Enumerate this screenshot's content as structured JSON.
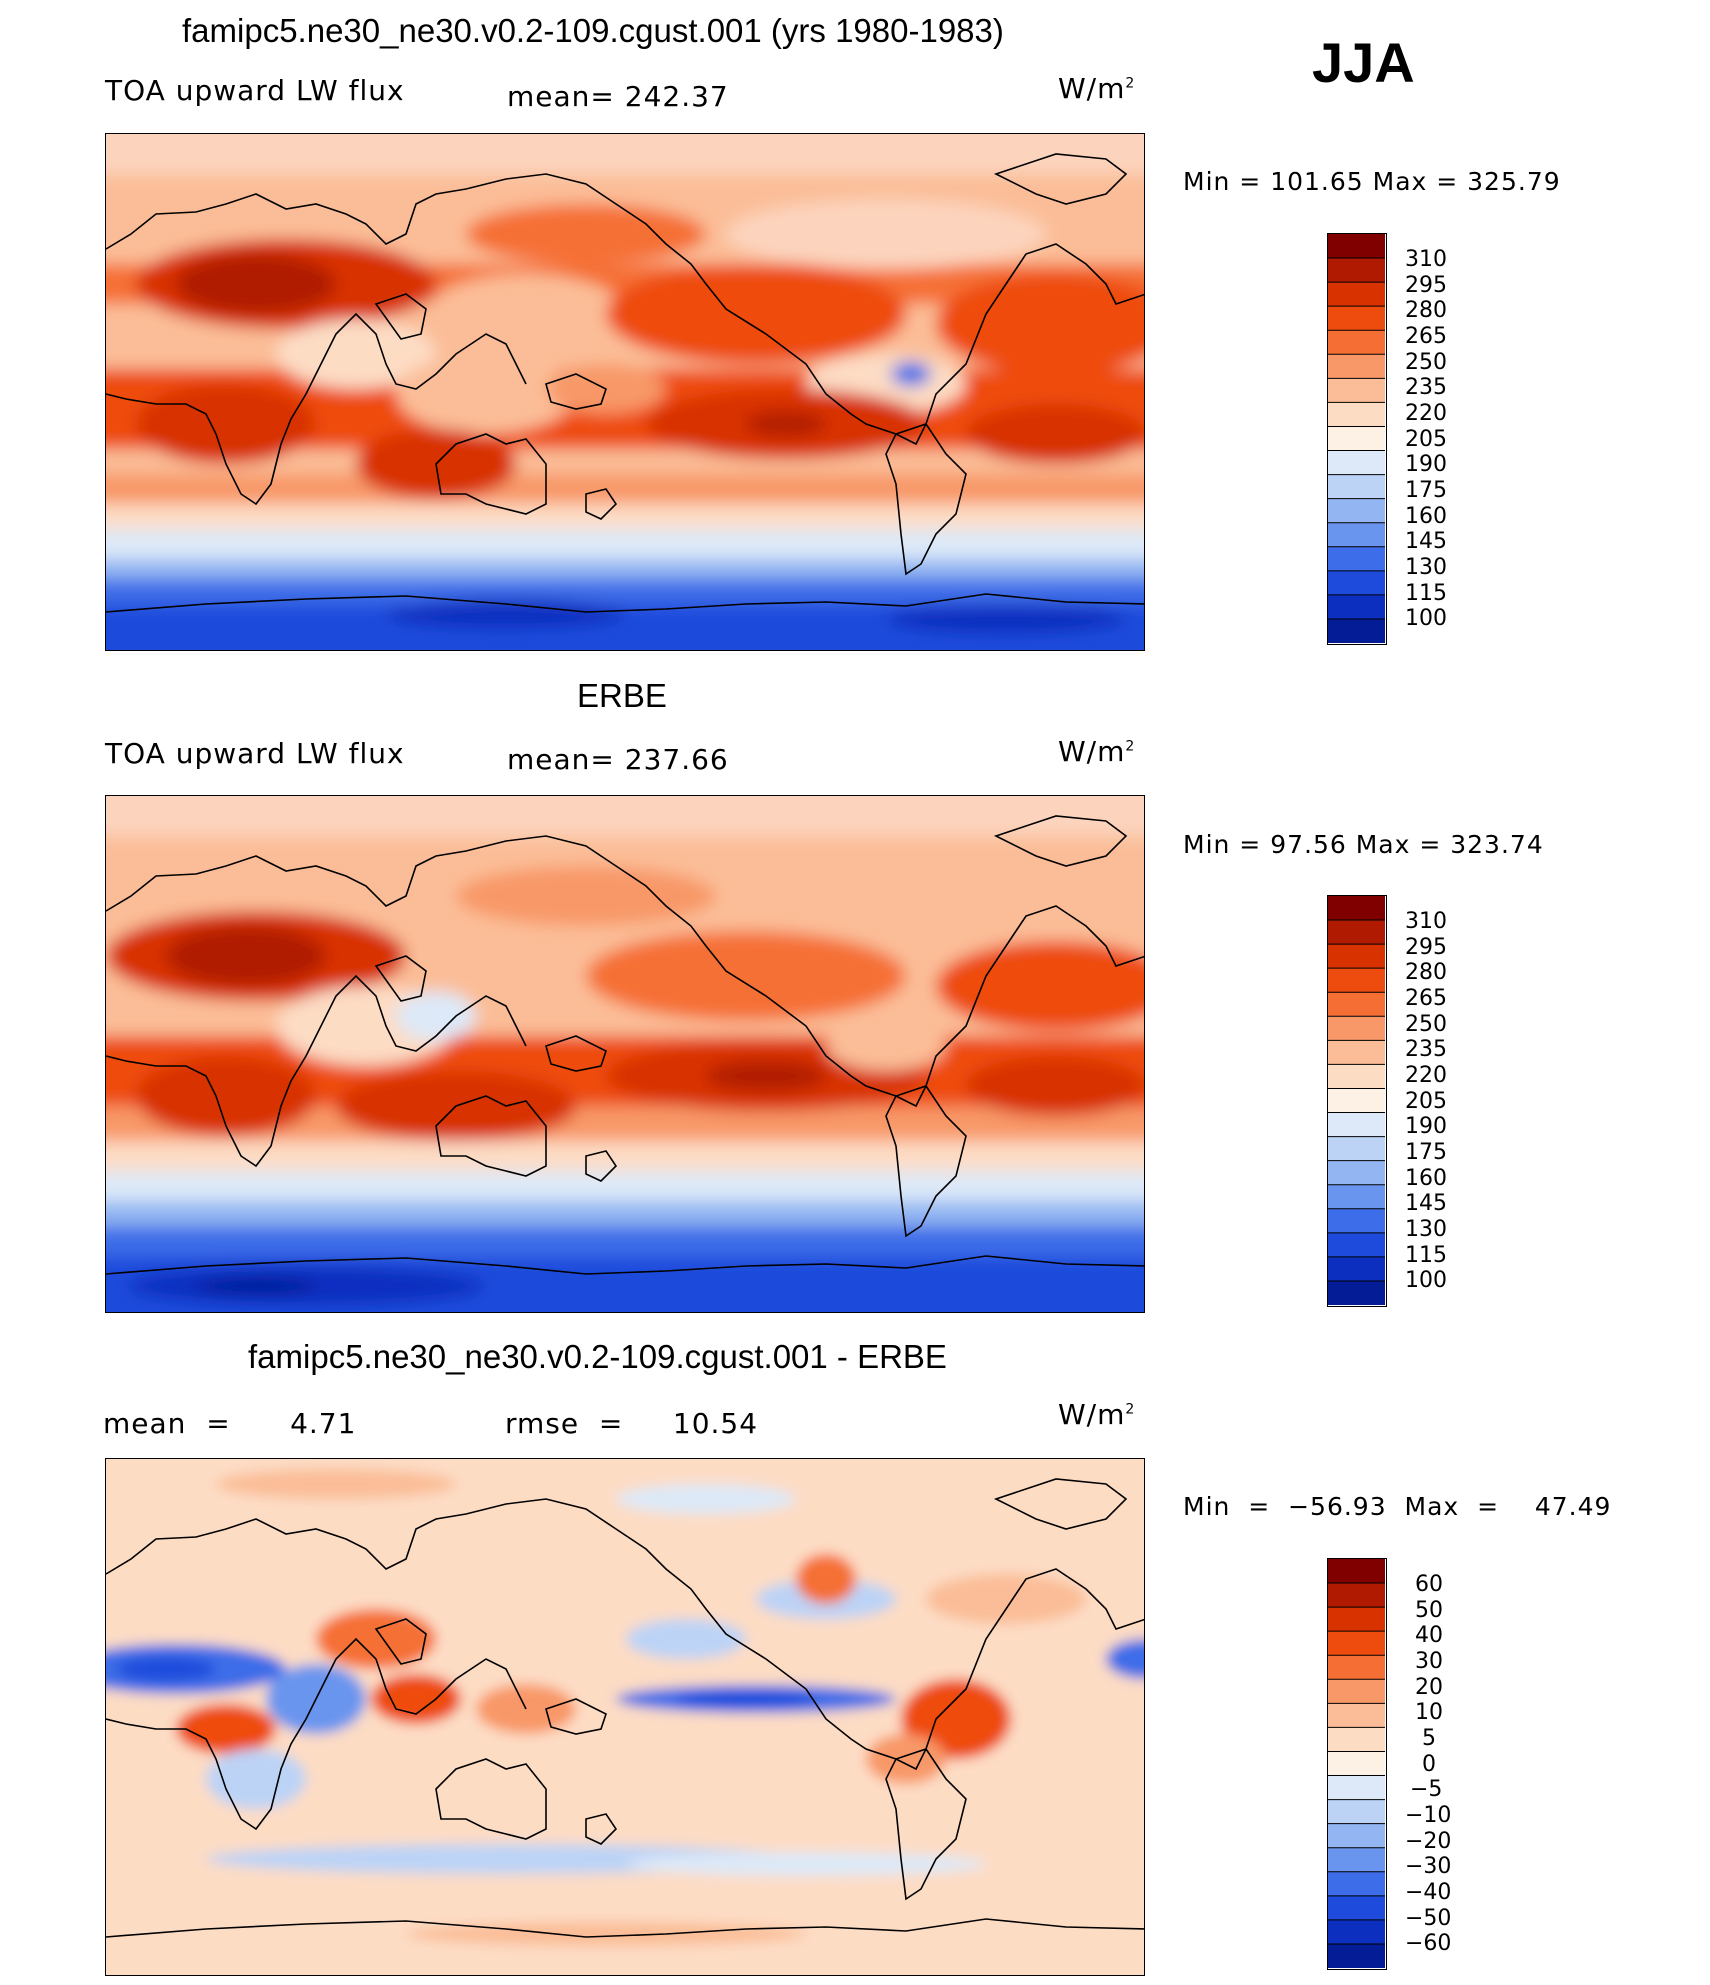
{
  "season": "JJA",
  "panels": [
    {
      "title": "famipc5.ne30_ne30.v0.2-109.cgust.001 (yrs 1980-1983)",
      "left_label": "TOA upward LW flux",
      "center_label": "mean=  242.37",
      "units": "W/m",
      "units_sup": "2",
      "minmax": "Min  =  101.65  Max  =  325.79",
      "colorbar_labels": [
        "310",
        "295",
        "280",
        "265",
        "250",
        "235",
        "220",
        "205",
        "190",
        "175",
        "160",
        "145",
        "130",
        "115",
        "100"
      ],
      "colorbar_colors": [
        "#800000",
        "#b01a00",
        "#d83200",
        "#ee4c0f",
        "#f56f35",
        "#f89868",
        "#fbbd97",
        "#fddcc4",
        "#fdf0e4",
        "#dde9f8",
        "#bcd3f6",
        "#93b6f2",
        "#6a95ee",
        "#3d6de8",
        "#1e4bdc",
        "#0d2fc0",
        "#041c96"
      ]
    },
    {
      "title": "ERBE",
      "left_label": "TOA upward LW flux",
      "center_label": "mean=  237.66",
      "units": "W/m",
      "units_sup": "2",
      "minmax": "Min  =    97.56  Max  =  323.74",
      "colorbar_labels": [
        "310",
        "295",
        "280",
        "265",
        "250",
        "235",
        "220",
        "205",
        "190",
        "175",
        "160",
        "145",
        "130",
        "115",
        "100"
      ],
      "colorbar_colors": [
        "#800000",
        "#b01a00",
        "#d83200",
        "#ee4c0f",
        "#f56f35",
        "#f89868",
        "#fbbd97",
        "#fddcc4",
        "#fdf0e4",
        "#dde9f8",
        "#bcd3f6",
        "#93b6f2",
        "#6a95ee",
        "#3d6de8",
        "#1e4bdc",
        "#0d2fc0",
        "#041c96"
      ]
    },
    {
      "title": "famipc5.ne30_ne30.v0.2-109.cgust.001 - ERBE",
      "left_label": "mean  =      4.71",
      "center_label": "rmse  =     10.54",
      "units": "W/m",
      "units_sup": "2",
      "minmax": "Min  =  −56.93  Max  =    47.49",
      "colorbar_labels": [
        "60",
        "50",
        "40",
        "30",
        "20",
        "10",
        "5",
        "0",
        "−5",
        "−10",
        "−20",
        "−30",
        "−40",
        "−50",
        "−60"
      ],
      "colorbar_colors": [
        "#800000",
        "#b01a00",
        "#d83200",
        "#ee4c0f",
        "#f56f35",
        "#f89868",
        "#fbbd97",
        "#fddcc4",
        "#fdf0e4",
        "#dde9f8",
        "#bcd3f6",
        "#93b6f2",
        "#6a95ee",
        "#3d6de8",
        "#1e4bdc",
        "#0d2fc0",
        "#041c96"
      ]
    }
  ]
}
